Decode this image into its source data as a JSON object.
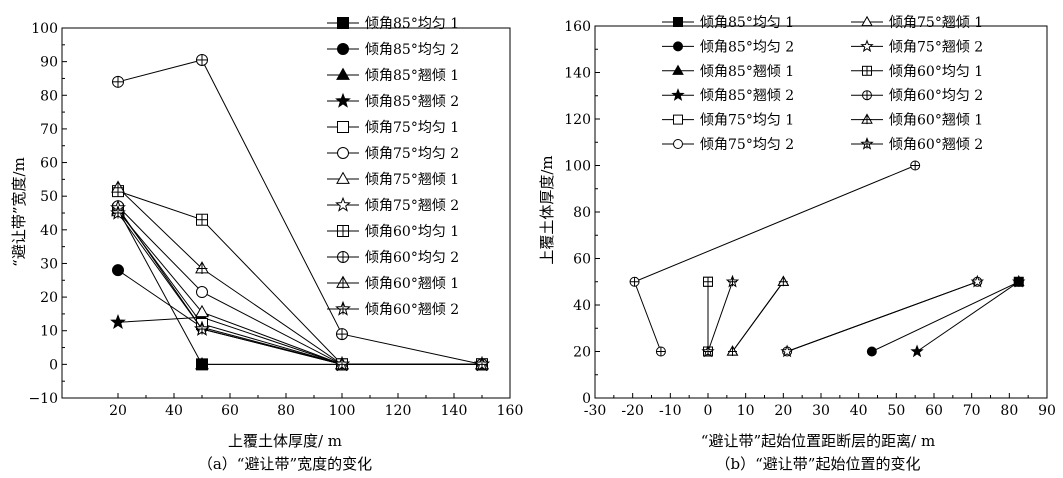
{
  "chart_data": [
    {
      "type": "line",
      "caption": "（a）“避让带”宽度的变化",
      "xlabel": "上覆土体厚度/ m",
      "ylabel": "“避让带”宽度/m",
      "xlim": [
        0,
        160
      ],
      "ylim": [
        -10,
        100
      ],
      "xticks": [
        20,
        40,
        60,
        80,
        100,
        120,
        140,
        160
      ],
      "yticks": [
        -10,
        0,
        10,
        20,
        30,
        40,
        50,
        60,
        70,
        80,
        90,
        100
      ],
      "legend_position": "top-right",
      "series": [
        {
          "name": "倾角85°均匀 1",
          "marker": "square-filled",
          "points": [
            [
              50,
              0
            ],
            [
              100,
              0
            ],
            [
              150,
              0
            ]
          ]
        },
        {
          "name": "倾角85°均匀 2",
          "marker": "circle-filled",
          "points": [
            [
              20,
              28
            ],
            [
              50,
              11
            ],
            [
              100,
              0
            ],
            [
              150,
              0
            ]
          ]
        },
        {
          "name": "倾角85°翘倾 1",
          "marker": "triangle-filled",
          "points": [
            [
              20,
              46
            ],
            [
              50,
              0
            ],
            [
              100,
              0
            ],
            [
              150,
              0
            ]
          ]
        },
        {
          "name": "倾角85°翘倾 2",
          "marker": "star-filled",
          "points": [
            [
              20,
              12.5
            ],
            [
              50,
              14
            ],
            [
              100,
              0
            ],
            [
              150,
              0
            ]
          ]
        },
        {
          "name": "倾角75°均匀 1",
          "marker": "square-open",
          "points": [
            [
              20,
              46
            ],
            [
              50,
              12
            ],
            [
              100,
              0
            ],
            [
              150,
              0
            ]
          ]
        },
        {
          "name": "倾角75°均匀 2",
          "marker": "circle-open",
          "points": [
            [
              20,
              47
            ],
            [
              50,
              21.5
            ],
            [
              100,
              0
            ],
            [
              150,
              0
            ]
          ]
        },
        {
          "name": "倾角75°翘倾 1",
          "marker": "triangle-open",
          "points": [
            [
              20,
              45.5
            ],
            [
              50,
              15.5
            ],
            [
              100,
              0
            ],
            [
              150,
              0
            ]
          ]
        },
        {
          "name": "倾角75°翘倾 2",
          "marker": "star-open",
          "points": [
            [
              20,
              46.5
            ],
            [
              50,
              10.5
            ],
            [
              100,
              0
            ],
            [
              150,
              0
            ]
          ]
        },
        {
          "name": "倾角60°均匀 1",
          "marker": "square-plus",
          "points": [
            [
              20,
              51.5
            ],
            [
              50,
              43
            ],
            [
              100,
              0
            ],
            [
              150,
              0
            ]
          ]
        },
        {
          "name": "倾角60°均匀 2",
          "marker": "circle-plus",
          "points": [
            [
              20,
              84
            ],
            [
              50,
              90.5
            ],
            [
              100,
              9
            ],
            [
              150,
              0
            ]
          ]
        },
        {
          "name": "倾角60°翘倾 1",
          "marker": "triangle-plus",
          "points": [
            [
              20,
              52.5
            ],
            [
              50,
              28.5
            ],
            [
              100,
              0
            ],
            [
              150,
              0
            ]
          ]
        },
        {
          "name": "倾角60°翘倾 2",
          "marker": "star-plus",
          "points": [
            [
              20,
              45
            ],
            [
              50,
              10.5
            ],
            [
              100,
              0
            ],
            [
              150,
              0
            ]
          ]
        }
      ]
    },
    {
      "type": "scatter",
      "caption": "（b）“避让带”起始位置的变化",
      "xlabel": "“避让带”起始位置距断层的距离/ m",
      "ylabel": "上覆土体厚度/m",
      "xlim": [
        -30,
        90
      ],
      "ylim": [
        0,
        160
      ],
      "xticks": [
        -30,
        -20,
        -10,
        0,
        10,
        20,
        30,
        40,
        50,
        60,
        70,
        80,
        90
      ],
      "yticks": [
        0,
        20,
        40,
        60,
        80,
        100,
        120,
        140,
        160
      ],
      "legend_position": "top",
      "series": [
        {
          "name": "倾角85°均匀 1",
          "marker": "square-filled",
          "points": [
            [
              82.5,
              50
            ]
          ]
        },
        {
          "name": "倾角85°均匀 2",
          "marker": "circle-filled",
          "points": [
            [
              43.5,
              20
            ],
            [
              82.5,
              50
            ]
          ]
        },
        {
          "name": "倾角85°翘倾 1",
          "marker": "triangle-filled",
          "points": [
            [
              82.5,
              50
            ]
          ]
        },
        {
          "name": "倾角85°翘倾 2",
          "marker": "star-filled",
          "points": [
            [
              55.5,
              20
            ],
            [
              82.5,
              50
            ]
          ]
        },
        {
          "name": "倾角75°均匀 1",
          "marker": "square-open",
          "points": [
            [
              0,
              20
            ],
            [
              0,
              50
            ]
          ]
        },
        {
          "name": "倾角75°均匀 2",
          "marker": "circle-open",
          "points": [
            [
              21,
              20
            ],
            [
              71.5,
              50
            ]
          ]
        },
        {
          "name": "倾角75°翘倾 1",
          "marker": "triangle-open",
          "points": [
            [
              6.5,
              20
            ],
            [
              20,
              50
            ]
          ]
        },
        {
          "name": "倾角75°翘倾 2",
          "marker": "star-open",
          "points": [
            [
              21,
              20
            ],
            [
              71.5,
              50
            ]
          ]
        },
        {
          "name": "倾角60°均匀 1",
          "marker": "square-plus",
          "points": [
            [
              0,
              20
            ],
            [
              0,
              50
            ]
          ]
        },
        {
          "name": "倾角60°均匀 2",
          "marker": "circle-plus",
          "points": [
            [
              -12.5,
              20
            ],
            [
              -19.5,
              50
            ],
            [
              55,
              100
            ]
          ]
        },
        {
          "name": "倾角60°翘倾 1",
          "marker": "triangle-plus",
          "points": [
            [
              6.5,
              20
            ],
            [
              20,
              50
            ]
          ]
        },
        {
          "name": "倾角60°翘倾 2",
          "marker": "star-plus",
          "points": [
            [
              0,
              20
            ],
            [
              6.5,
              50
            ]
          ]
        }
      ]
    }
  ]
}
